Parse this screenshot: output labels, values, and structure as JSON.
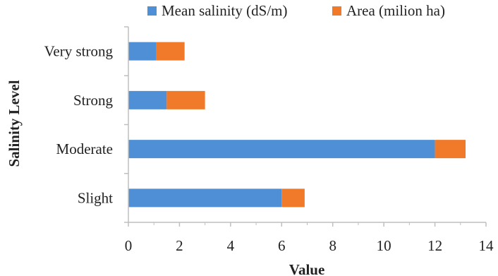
{
  "chart_data": {
    "type": "bar",
    "orientation": "horizontal",
    "stacked": true,
    "categories": [
      "Very strong",
      "Strong",
      "Moderate",
      "Slight"
    ],
    "series": [
      {
        "name": "Mean salinity (dS/m)",
        "values": [
          1.1,
          1.5,
          12.0,
          6.0
        ],
        "color": "#4f8fd6"
      },
      {
        "name": "Area (milion ha)",
        "values": [
          1.1,
          1.5,
          1.2,
          0.9
        ],
        "color": "#f07a2a"
      }
    ],
    "xlabel": "Value",
    "ylabel": "Salinity Level",
    "xlim": [
      0,
      14
    ],
    "xticks": [
      0,
      2,
      4,
      6,
      8,
      10,
      12,
      14
    ],
    "grid": false,
    "legend_position": "top"
  }
}
